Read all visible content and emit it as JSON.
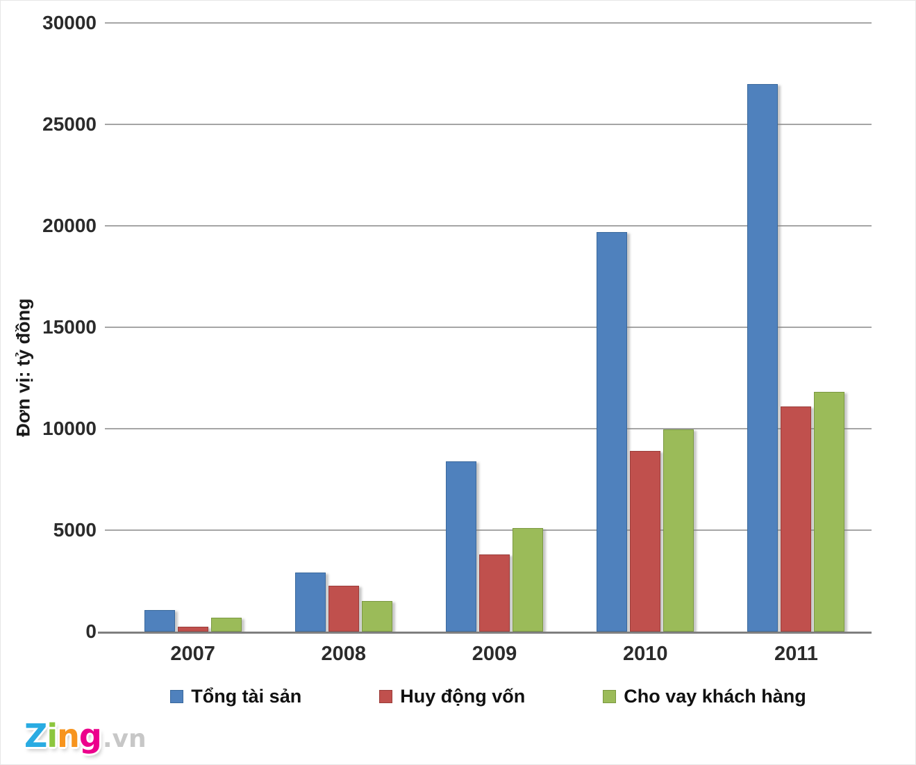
{
  "chart_data": {
    "type": "bar",
    "title": "",
    "xlabel": "",
    "ylabel": "Đơn vị: tỷ đồng",
    "ylim": [
      0,
      30000
    ],
    "y_ticks": [
      0,
      5000,
      10000,
      15000,
      20000,
      25000,
      30000
    ],
    "grid": true,
    "legend_position": "bottom",
    "categories": [
      "2007",
      "2008",
      "2009",
      "2010",
      "2011"
    ],
    "series": [
      {
        "name": "Tổng tài sản",
        "slug": "tong-tai-san",
        "color": "#4F81BD",
        "border_color": "#39689c",
        "values": [
          1050,
          2900,
          8400,
          19700,
          27000
        ]
      },
      {
        "name": "Huy động vốn",
        "slug": "huy-dong-von",
        "color": "#C0504D",
        "border_color": "#9a3c39",
        "values": [
          250,
          2250,
          3800,
          8900,
          11100
        ]
      },
      {
        "name": "Cho vay khách hàng",
        "slug": "cho-vay-khach-hang",
        "color": "#9BBB59",
        "border_color": "#7a9840",
        "values": [
          700,
          1500,
          5100,
          9950,
          11800
        ]
      }
    ]
  },
  "colors": {
    "gridline": "#a5a5a5",
    "axis_line": "#7f7f7f",
    "tick_text": "#2b2b2b"
  },
  "logo": {
    "suffix": ".vn",
    "letters": [
      {
        "char": "Z",
        "color": "#29abe2"
      },
      {
        "char": "i",
        "color": "#8cc63e"
      },
      {
        "char": "n",
        "color": "#f7941e"
      },
      {
        "char": "g",
        "color": "#ec008c"
      }
    ]
  }
}
